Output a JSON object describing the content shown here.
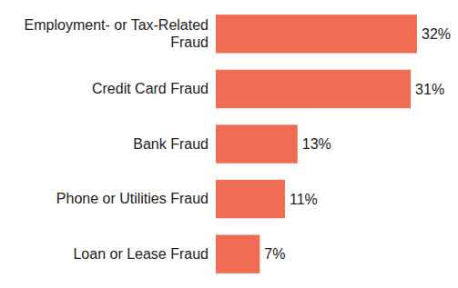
{
  "chart_data": {
    "type": "bar",
    "orientation": "horizontal",
    "categories": [
      "Employment- or Tax-Related Fraud",
      "Credit Card Fraud",
      "Bank Fraud",
      "Phone or Utilities Fraud",
      "Loan or Lease Fraud"
    ],
    "values": [
      32,
      31,
      13,
      11,
      7
    ],
    "value_labels": [
      "32%",
      "31%",
      "13%",
      "11%",
      "7%"
    ],
    "color": "#f06c52",
    "xlim": [
      0,
      32
    ],
    "data_labels": true,
    "tick_labels": "y"
  }
}
